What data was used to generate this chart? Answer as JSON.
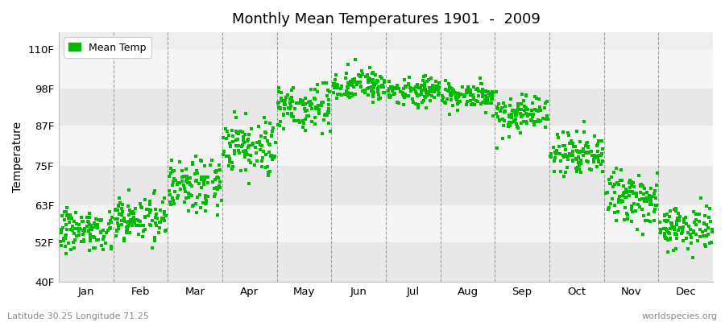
{
  "title": "Monthly Mean Temperatures 1901  -  2009",
  "ylabel": "Temperature",
  "xlabel_labels": [
    "Jan",
    "Feb",
    "Mar",
    "Apr",
    "May",
    "Jun",
    "Jul",
    "Aug",
    "Sep",
    "Oct",
    "Nov",
    "Dec"
  ],
  "ytick_labels": [
    "40F",
    "52F",
    "63F",
    "75F",
    "87F",
    "98F",
    "110F"
  ],
  "ytick_values": [
    40,
    52,
    63,
    75,
    87,
    98,
    110
  ],
  "ylim": [
    40,
    115
  ],
  "xlim": [
    0,
    12
  ],
  "legend_label": "Mean Temp",
  "dot_color": "#00bb00",
  "dot_size": 5,
  "bg_color": "#eeeeee",
  "band_color_light": "#f5f5f5",
  "band_color_dark": "#e8e8e8",
  "footer_left": "Latitude 30.25 Longitude 71.25",
  "footer_right": "worldspecies.org",
  "monthly_means_F": [
    55.5,
    59.5,
    70.0,
    81.0,
    93.0,
    99.0,
    97.5,
    96.0,
    90.0,
    79.0,
    65.0,
    56.5
  ],
  "monthly_std_F": [
    3.0,
    3.5,
    4.0,
    4.0,
    3.5,
    2.5,
    2.0,
    2.0,
    3.0,
    3.5,
    3.5,
    3.5
  ],
  "n_years": 109
}
